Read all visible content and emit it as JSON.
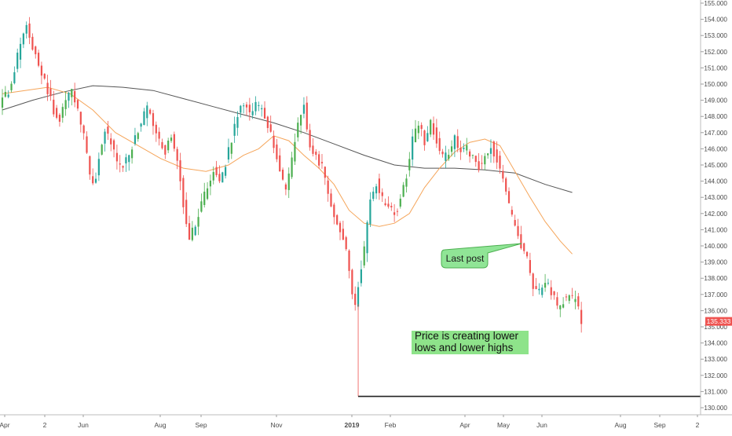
{
  "chart_data": {
    "type": "candlestick",
    "x_tick_labels": [
      "Apr",
      "2",
      "Jun",
      "Aug",
      "Sep",
      "Nov",
      "2019",
      "Feb",
      "Apr",
      "May",
      "Jun",
      "Aug",
      "Sep",
      "2"
    ],
    "y_tick_labels": [
      "155.000",
      "154.000",
      "153.000",
      "152.000",
      "151.000",
      "150.000",
      "149.000",
      "148.000",
      "147.000",
      "146.000",
      "145.000",
      "144.000",
      "143.000",
      "142.000",
      "141.000",
      "140.000",
      "139.000",
      "138.000",
      "137.000",
      "136.000",
      "135.000",
      "134.000",
      "133.000",
      "132.000",
      "131.000",
      "130.000"
    ],
    "ylim": [
      129.6,
      155.2
    ],
    "last_price": "135.333",
    "support_level": 130.7,
    "price_path": [
      [
        0,
        148.8
      ],
      [
        6,
        149.6
      ],
      [
        10,
        150.8
      ],
      [
        14,
        152.6
      ],
      [
        18,
        153.8
      ],
      [
        22,
        152.2
      ],
      [
        26,
        151.2
      ],
      [
        30,
        150.2
      ],
      [
        36,
        148.4
      ],
      [
        40,
        147.8
      ],
      [
        44,
        148.9
      ],
      [
        48,
        149.7
      ],
      [
        52,
        148.4
      ],
      [
        56,
        146.8
      ],
      [
        60,
        144.2
      ],
      [
        63,
        143.7
      ],
      [
        66,
        145.6
      ],
      [
        70,
        147.2
      ],
      [
        74,
        146.3
      ],
      [
        78,
        145.2
      ],
      [
        82,
        144.9
      ],
      [
        86,
        145.6
      ],
      [
        90,
        146.6
      ],
      [
        94,
        147.6
      ],
      [
        98,
        148.6
      ],
      [
        102,
        147.4
      ],
      [
        106,
        146.5
      ],
      [
        110,
        145.7
      ],
      [
        114,
        146.9
      ],
      [
        118,
        145.4
      ],
      [
        122,
        142.6
      ],
      [
        126,
        140.6
      ],
      [
        130,
        141.2
      ],
      [
        134,
        142.6
      ],
      [
        138,
        143.6
      ],
      [
        142,
        144.6
      ],
      [
        146,
        144.1
      ],
      [
        150,
        145.1
      ],
      [
        154,
        146.6
      ],
      [
        158,
        148.1
      ],
      [
        162,
        148.8
      ],
      [
        166,
        148.2
      ],
      [
        170,
        148.9
      ],
      [
        174,
        148.3
      ],
      [
        178,
        147.4
      ],
      [
        182,
        146.3
      ],
      [
        186,
        144.6
      ],
      [
        190,
        143.5
      ],
      [
        194,
        145.4
      ],
      [
        198,
        147.6
      ],
      [
        202,
        148.6
      ],
      [
        206,
        146.1
      ],
      [
        210,
        145.4
      ],
      [
        214,
        144.9
      ],
      [
        218,
        143.3
      ],
      [
        222,
        141.8
      ],
      [
        226,
        141.1
      ],
      [
        230,
        139.9
      ],
      [
        234,
        137.2
      ],
      [
        236,
        136.1
      ],
      [
        238,
        137.6
      ],
      [
        242,
        139.8
      ],
      [
        246,
        142.8
      ],
      [
        250,
        143.9
      ],
      [
        254,
        142.9
      ],
      [
        258,
        142.6
      ],
      [
        262,
        142.0
      ],
      [
        266,
        142.8
      ],
      [
        270,
        144.4
      ],
      [
        274,
        146.6
      ],
      [
        278,
        147.7
      ],
      [
        282,
        146.4
      ],
      [
        286,
        147.8
      ],
      [
        290,
        146.4
      ],
      [
        294,
        145.4
      ],
      [
        298,
        145.8
      ],
      [
        302,
        146.6
      ],
      [
        306,
        145.9
      ],
      [
        310,
        146.1
      ],
      [
        314,
        145.4
      ],
      [
        318,
        144.9
      ],
      [
        322,
        145.6
      ],
      [
        326,
        146.2
      ],
      [
        330,
        145.3
      ],
      [
        334,
        144.4
      ],
      [
        338,
        142.4
      ],
      [
        342,
        141.2
      ],
      [
        346,
        140.1
      ],
      [
        350,
        139.1
      ],
      [
        354,
        137.6
      ],
      [
        358,
        137.2
      ],
      [
        362,
        137.9
      ],
      [
        366,
        137.2
      ],
      [
        370,
        136.2
      ],
      [
        374,
        136.6
      ],
      [
        378,
        136.9
      ],
      [
        382,
        136.7
      ],
      [
        386,
        135.333
      ]
    ],
    "ma_50_path": [
      [
        0,
        149.4
      ],
      [
        15,
        149.6
      ],
      [
        30,
        149.8
      ],
      [
        45,
        149.4
      ],
      [
        60,
        148.4
      ],
      [
        75,
        147.0
      ],
      [
        90,
        146.2
      ],
      [
        105,
        145.4
      ],
      [
        120,
        144.8
      ],
      [
        135,
        144.6
      ],
      [
        150,
        145.0
      ],
      [
        160,
        145.6
      ],
      [
        170,
        146.0
      ],
      [
        180,
        146.8
      ],
      [
        190,
        146.5
      ],
      [
        200,
        145.6
      ],
      [
        210,
        144.8
      ],
      [
        220,
        143.8
      ],
      [
        230,
        142.2
      ],
      [
        240,
        141.4
      ],
      [
        250,
        141.2
      ],
      [
        260,
        141.4
      ],
      [
        270,
        142.0
      ],
      [
        280,
        143.6
      ],
      [
        290,
        144.8
      ],
      [
        300,
        145.8
      ],
      [
        310,
        146.4
      ],
      [
        320,
        146.6
      ],
      [
        330,
        146.2
      ],
      [
        340,
        144.6
      ],
      [
        350,
        143.0
      ],
      [
        360,
        141.5
      ],
      [
        370,
        140.3
      ],
      [
        378,
        139.5
      ]
    ],
    "ma_200_path": [
      [
        0,
        148.4
      ],
      [
        20,
        149.0
      ],
      [
        40,
        149.5
      ],
      [
        60,
        149.9
      ],
      [
        80,
        149.8
      ],
      [
        100,
        149.6
      ],
      [
        120,
        149.1
      ],
      [
        140,
        148.6
      ],
      [
        160,
        148.1
      ],
      [
        180,
        147.6
      ],
      [
        200,
        147.0
      ],
      [
        220,
        146.3
      ],
      [
        240,
        145.6
      ],
      [
        260,
        145.0
      ],
      [
        280,
        144.8
      ],
      [
        300,
        144.8
      ],
      [
        320,
        144.7
      ],
      [
        340,
        144.5
      ],
      [
        360,
        143.8
      ],
      [
        378,
        143.3
      ]
    ],
    "annotations": {
      "last_post_label": "Last post",
      "trend_note": "Price is creating lower lows and lower highs"
    }
  },
  "colors": {
    "up_candle": "#26a69a",
    "up_candle_light": "#4caf50",
    "down_candle": "#ef5350",
    "ma_short": "#f5a55a",
    "ma_long": "#555555",
    "price_label_bg": "#ef5350",
    "callout_bg": "#90e596",
    "callout_border": "#4caf50",
    "note_bg": "#8ee38a",
    "axis_text": "#4a4a4a",
    "support_line": "#222222"
  }
}
